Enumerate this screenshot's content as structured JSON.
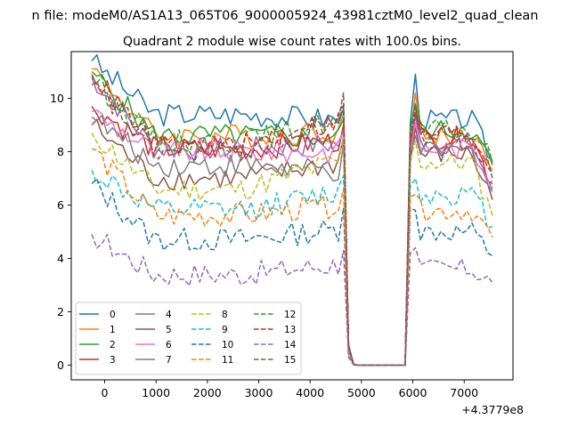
{
  "figure": {
    "suptitle": "n file: modeM0/AS1A13_065T06_9000005924_43981cztM0_level2_quad_clean",
    "offset_label": "+4.3779e8"
  },
  "chart_data": {
    "type": "line",
    "title": "Quadrant 2 module wise count rates with 100.0s bins.",
    "xlabel": "",
    "ylabel": "",
    "xlim": [
      -650,
      7950
    ],
    "ylim": [
      -0.55,
      11.75
    ],
    "x_ticks": [
      0,
      1000,
      2000,
      3000,
      4000,
      5000,
      6000,
      7000
    ],
    "y_ticks": [
      0,
      2,
      4,
      6,
      8,
      10
    ],
    "grid": false,
    "legend": {
      "position": "lower left",
      "columns": 4
    },
    "x_segments": [
      {
        "start": -250,
        "end": 4650,
        "step": 100
      },
      {
        "start": 4750,
        "end": 5850,
        "step": 100
      },
      {
        "start": 5950,
        "end": 7550,
        "step": 100
      }
    ],
    "gap_pattern": [
      0.7,
      0.02,
      0,
      0,
      0,
      0,
      0,
      0,
      0,
      0,
      0,
      0
    ],
    "series": [
      {
        "name": "0",
        "color": "#1f77b4",
        "dashed": false,
        "first": 11.4,
        "level": 9.4,
        "end_pre": 9.2,
        "jump": 9.6,
        "post_start": 9.1,
        "post_peak": 10.9,
        "post_level": 9.2,
        "last": 7.7
      },
      {
        "name": "1",
        "color": "#ff7f0e",
        "dashed": false,
        "first": 11.1,
        "level": 8.6,
        "end_pre": 8.8,
        "jump": 9.4,
        "post_start": 8.6,
        "post_peak": 10.2,
        "post_level": 8.6,
        "last": 7.3
      },
      {
        "name": "2",
        "color": "#2ca02c",
        "dashed": false,
        "first": 11.0,
        "level": 8.6,
        "end_pre": 8.5,
        "jump": 9.2,
        "post_start": 8.9,
        "post_peak": 9.8,
        "post_level": 8.8,
        "last": 7.5
      },
      {
        "name": "3",
        "color": "#d62728",
        "dashed": false,
        "first": 9.7,
        "level": 8.1,
        "end_pre": 8.4,
        "jump": 9.0,
        "post_start": 8.2,
        "post_peak": 9.4,
        "post_level": 8.5,
        "last": 6.8
      },
      {
        "name": "4",
        "color": "#9467bd",
        "dashed": false,
        "first": 10.8,
        "level": 8.1,
        "end_pre": 8.3,
        "jump": 8.8,
        "post_start": 8.4,
        "post_peak": 9.3,
        "post_level": 8.3,
        "last": 6.6
      },
      {
        "name": "5",
        "color": "#8c564b",
        "dashed": false,
        "first": 9.0,
        "level": 7.0,
        "end_pre": 7.6,
        "jump": 8.5,
        "post_start": 7.6,
        "post_peak": 8.9,
        "post_level": 7.9,
        "last": 6.2
      },
      {
        "name": "6",
        "color": "#e377c2",
        "dashed": false,
        "first": 9.5,
        "level": 8.0,
        "end_pre": 8.0,
        "jump": 8.7,
        "post_start": 8.0,
        "post_peak": 9.1,
        "post_level": 8.1,
        "last": 6.9
      },
      {
        "name": "7",
        "color": "#7f7f7f",
        "dashed": false,
        "first": 9.3,
        "level": 7.5,
        "end_pre": 7.2,
        "jump": 8.3,
        "post_start": 7.9,
        "post_peak": 8.6,
        "post_level": 8.0,
        "last": 6.5
      },
      {
        "name": "8",
        "color": "#bcbd22",
        "dashed": true,
        "first": 8.7,
        "level": 6.6,
        "end_pre": 7.7,
        "jump": 8.6,
        "post_start": 7.7,
        "post_peak": 8.4,
        "post_level": 7.6,
        "last": 5.6
      },
      {
        "name": "9",
        "color": "#17becf",
        "dashed": true,
        "first": 7.3,
        "level": 5.8,
        "end_pre": 6.5,
        "jump": 7.1,
        "post_start": 6.7,
        "post_peak": 7.0,
        "post_level": 6.4,
        "last": 5.2
      },
      {
        "name": "10",
        "color": "#1f77b4",
        "dashed": true,
        "first": 6.8,
        "level": 4.7,
        "end_pre": 5.1,
        "jump": 5.9,
        "post_start": 5.9,
        "post_peak": 5.8,
        "post_level": 5.0,
        "last": 4.1
      },
      {
        "name": "11",
        "color": "#ff7f0e",
        "dashed": true,
        "first": 8.1,
        "level": 5.6,
        "end_pre": 6.0,
        "jump": 6.6,
        "post_start": 6.3,
        "post_peak": 6.4,
        "post_level": 5.8,
        "last": 4.8
      },
      {
        "name": "12",
        "color": "#2ca02c",
        "dashed": true,
        "first": 10.8,
        "level": 8.4,
        "end_pre": 9.2,
        "jump": 9.7,
        "post_start": 8.9,
        "post_peak": 9.6,
        "post_level": 8.8,
        "last": 7.6
      },
      {
        "name": "13",
        "color": "#d62728",
        "dashed": true,
        "first": 10.9,
        "level": 8.2,
        "end_pre": 9.2,
        "jump": 9.8,
        "post_start": 8.6,
        "post_peak": 9.5,
        "post_level": 8.7,
        "last": 7.2
      },
      {
        "name": "14",
        "color": "#9467bd",
        "dashed": true,
        "first": 4.9,
        "level": 3.4,
        "end_pre": 3.8,
        "jump": 4.3,
        "post_start": 4.2,
        "post_peak": 4.4,
        "post_level": 3.6,
        "last": 3.1
      },
      {
        "name": "15",
        "color": "#8c564b",
        "dashed": true,
        "first": 10.5,
        "level": 8.0,
        "end_pre": 9.4,
        "jump": 10.2,
        "post_start": 8.3,
        "post_peak": 9.7,
        "post_level": 8.6,
        "last": 7.0
      }
    ]
  }
}
